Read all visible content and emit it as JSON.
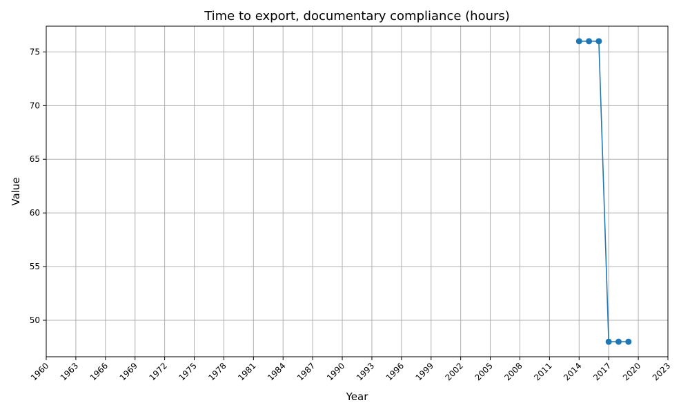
{
  "chart_data": {
    "type": "line",
    "title": "Time to export, documentary compliance (hours)",
    "xlabel": "Year",
    "ylabel": "Value",
    "x_ticks": [
      1960,
      1963,
      1966,
      1969,
      1972,
      1975,
      1978,
      1981,
      1984,
      1987,
      1990,
      1993,
      1996,
      1999,
      2002,
      2005,
      2008,
      2011,
      2014,
      2017,
      2020,
      2023
    ],
    "y_ticks": [
      50,
      55,
      60,
      65,
      70,
      75
    ],
    "xlim": [
      1960,
      2023
    ],
    "ylim": [
      46.6,
      77.4
    ],
    "grid": true,
    "series": [
      {
        "x": [
          2014,
          2015,
          2016,
          2017,
          2018,
          2019
        ],
        "y": [
          76,
          76,
          76,
          48,
          48,
          48
        ],
        "color": "#1f77b4",
        "marker": "circle"
      }
    ]
  }
}
